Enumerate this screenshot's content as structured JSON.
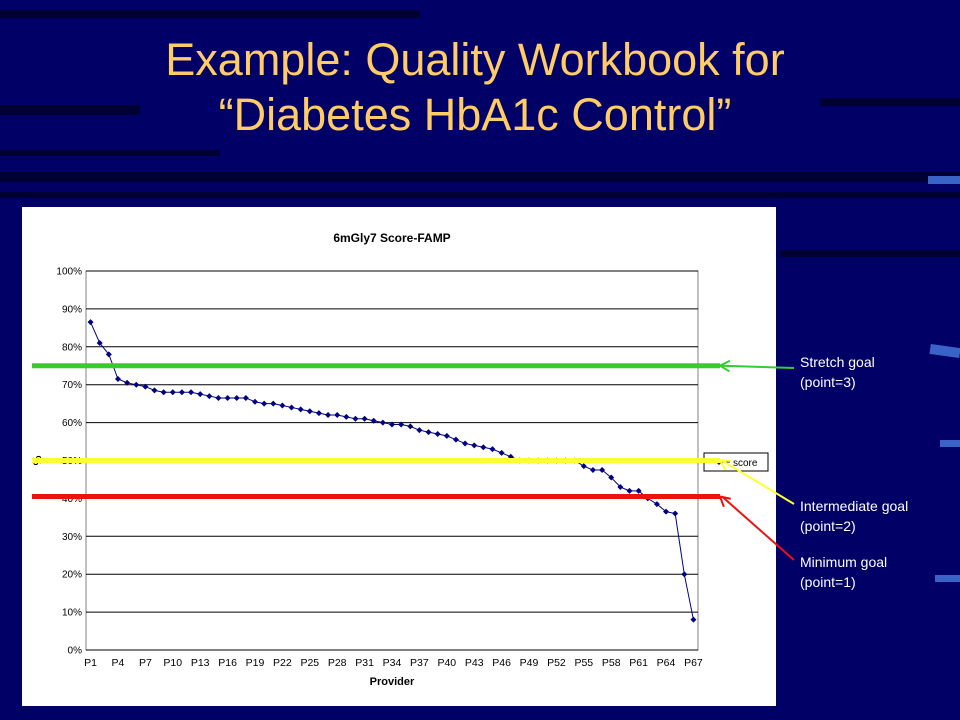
{
  "slide": {
    "title_line1": "Example: Quality Workbook for",
    "title_line2": "“Diabetes HbA1c Control”"
  },
  "goals": [
    {
      "line1": "Stretch goal",
      "line2": "(point=3)",
      "value": 75,
      "color": "#33CC33"
    },
    {
      "line1": "Intermediate goal",
      "line2": "(point=2)",
      "value": 50,
      "color": "#FFFF33"
    },
    {
      "line1": "Minimum goal",
      "line2": "(point=1)",
      "value": 40.5,
      "color": "#EE1111"
    }
  ],
  "chart_data": {
    "type": "line",
    "title": "6mGly7 Score-FAMP",
    "xlabel": "Provider",
    "ylabel": "%",
    "ylim": [
      0,
      100
    ],
    "yticks": [
      "0%",
      "10%",
      "20%",
      "30%",
      "40%",
      "50%",
      "60%",
      "70%",
      "80%",
      "90%",
      "100%"
    ],
    "xtick_labels": [
      "P1",
      "P4",
      "P7",
      "P10",
      "P13",
      "P16",
      "P19",
      "P22",
      "P25",
      "P28",
      "P31",
      "P34",
      "P37",
      "P40",
      "P43",
      "P46",
      "P49",
      "P52",
      "P55",
      "P58",
      "P61",
      "P64",
      "P67"
    ],
    "legend": "right",
    "grid": true,
    "series": [
      {
        "name": "score",
        "color": "#000080",
        "x": [
          "P1",
          "P2",
          "P3",
          "P4",
          "P5",
          "P6",
          "P7",
          "P8",
          "P9",
          "P10",
          "P11",
          "P12",
          "P13",
          "P14",
          "P15",
          "P16",
          "P17",
          "P18",
          "P19",
          "P20",
          "P21",
          "P22",
          "P23",
          "P24",
          "P25",
          "P26",
          "P27",
          "P28",
          "P29",
          "P30",
          "P31",
          "P32",
          "P33",
          "P34",
          "P35",
          "P36",
          "P37",
          "P38",
          "P39",
          "P40",
          "P41",
          "P42",
          "P43",
          "P44",
          "P45",
          "P46",
          "P47",
          "P48",
          "P49",
          "P50",
          "P51",
          "P52",
          "P53",
          "P54",
          "P55",
          "P56",
          "P57",
          "P58",
          "P59",
          "P60",
          "P61",
          "P62",
          "P63",
          "P64",
          "P65",
          "P66",
          "P67"
        ],
        "values": [
          86.5,
          81,
          78,
          71.5,
          70.5,
          70,
          69.5,
          68.5,
          68,
          68,
          68,
          68,
          67.5,
          67,
          66.5,
          66.5,
          66.5,
          66.5,
          65.5,
          65,
          65,
          64.5,
          64,
          63.5,
          63,
          62.5,
          62,
          62,
          61.5,
          61,
          61,
          60.5,
          60,
          59.5,
          59.5,
          59,
          58,
          57.5,
          57,
          56.5,
          55.5,
          54.5,
          54,
          53.5,
          53,
          52,
          51,
          50,
          50,
          50,
          50,
          50,
          50,
          50,
          48.5,
          47.5,
          47.5,
          45.5,
          43,
          42,
          42,
          40,
          38.5,
          36.5,
          36,
          20,
          8
        ]
      }
    ]
  }
}
